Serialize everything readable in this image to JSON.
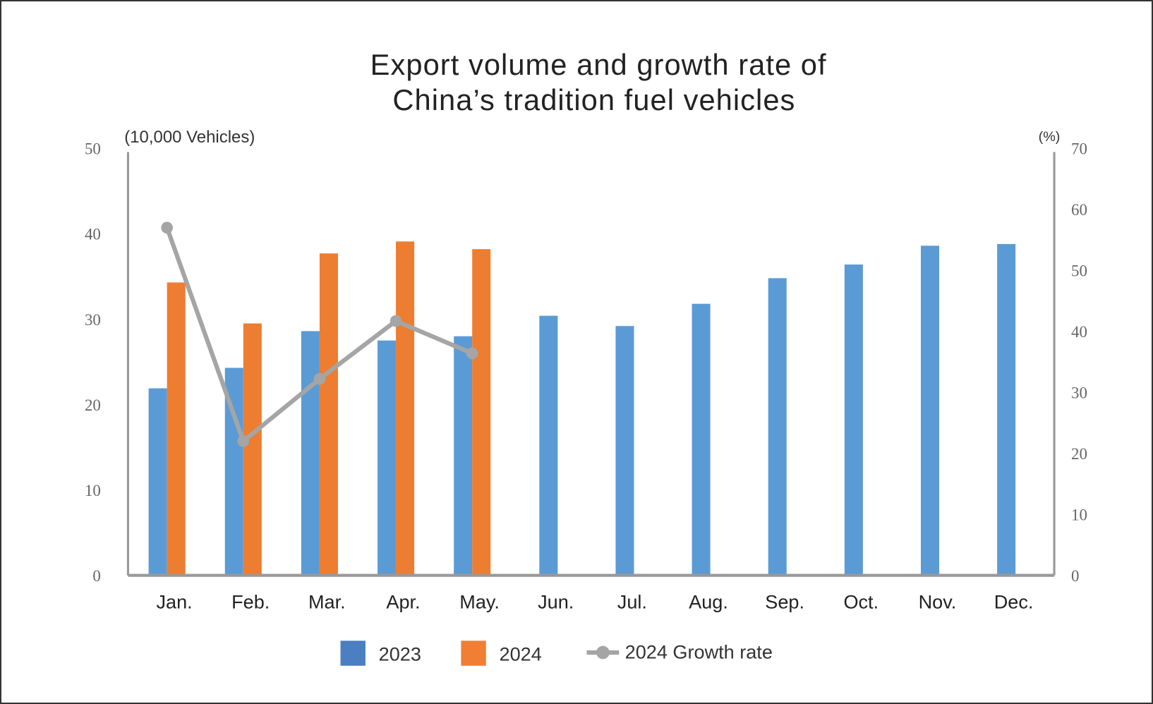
{
  "chart_data": {
    "type": "bar",
    "title": [
      "Export volume and growth rate of",
      "China’s tradition fuel vehicles"
    ],
    "left_axis_unit": "(10,000 Vehicles)",
    "right_axis_unit": "(%)",
    "categories": [
      "Jan.",
      "Feb.",
      "Mar.",
      "Apr.",
      "May.",
      "Jun.",
      "Jul.",
      "Aug.",
      "Sep.",
      "Oct.",
      "Nov.",
      "Dec."
    ],
    "ylim_left": [
      0,
      50
    ],
    "ylim_right": [
      0,
      70
    ],
    "left_ticks": [
      0,
      10,
      20,
      30,
      40,
      50
    ],
    "right_ticks": [
      0,
      10,
      20,
      30,
      40,
      50,
      60,
      70
    ],
    "grid": false,
    "legend_position": "bottom",
    "series": [
      {
        "name": "2023",
        "type": "bar",
        "axis": "left",
        "color": "#5b9bd5",
        "values": [
          21.9,
          24.3,
          28.6,
          27.5,
          28.0,
          30.4,
          29.2,
          31.8,
          34.8,
          36.4,
          38.6,
          38.8
        ]
      },
      {
        "name": "2024",
        "type": "bar",
        "axis": "left",
        "color": "#ed7d31",
        "values": [
          34.3,
          29.5,
          37.7,
          39.1,
          38.2,
          null,
          null,
          null,
          null,
          null,
          null,
          null
        ]
      },
      {
        "name": "2024 Growth rate",
        "type": "line",
        "axis": "right",
        "color": "#a5a5a5",
        "values": [
          57.0,
          22.0,
          32.2,
          41.7,
          36.4,
          null,
          null,
          null,
          null,
          null,
          null,
          null
        ]
      }
    ]
  }
}
